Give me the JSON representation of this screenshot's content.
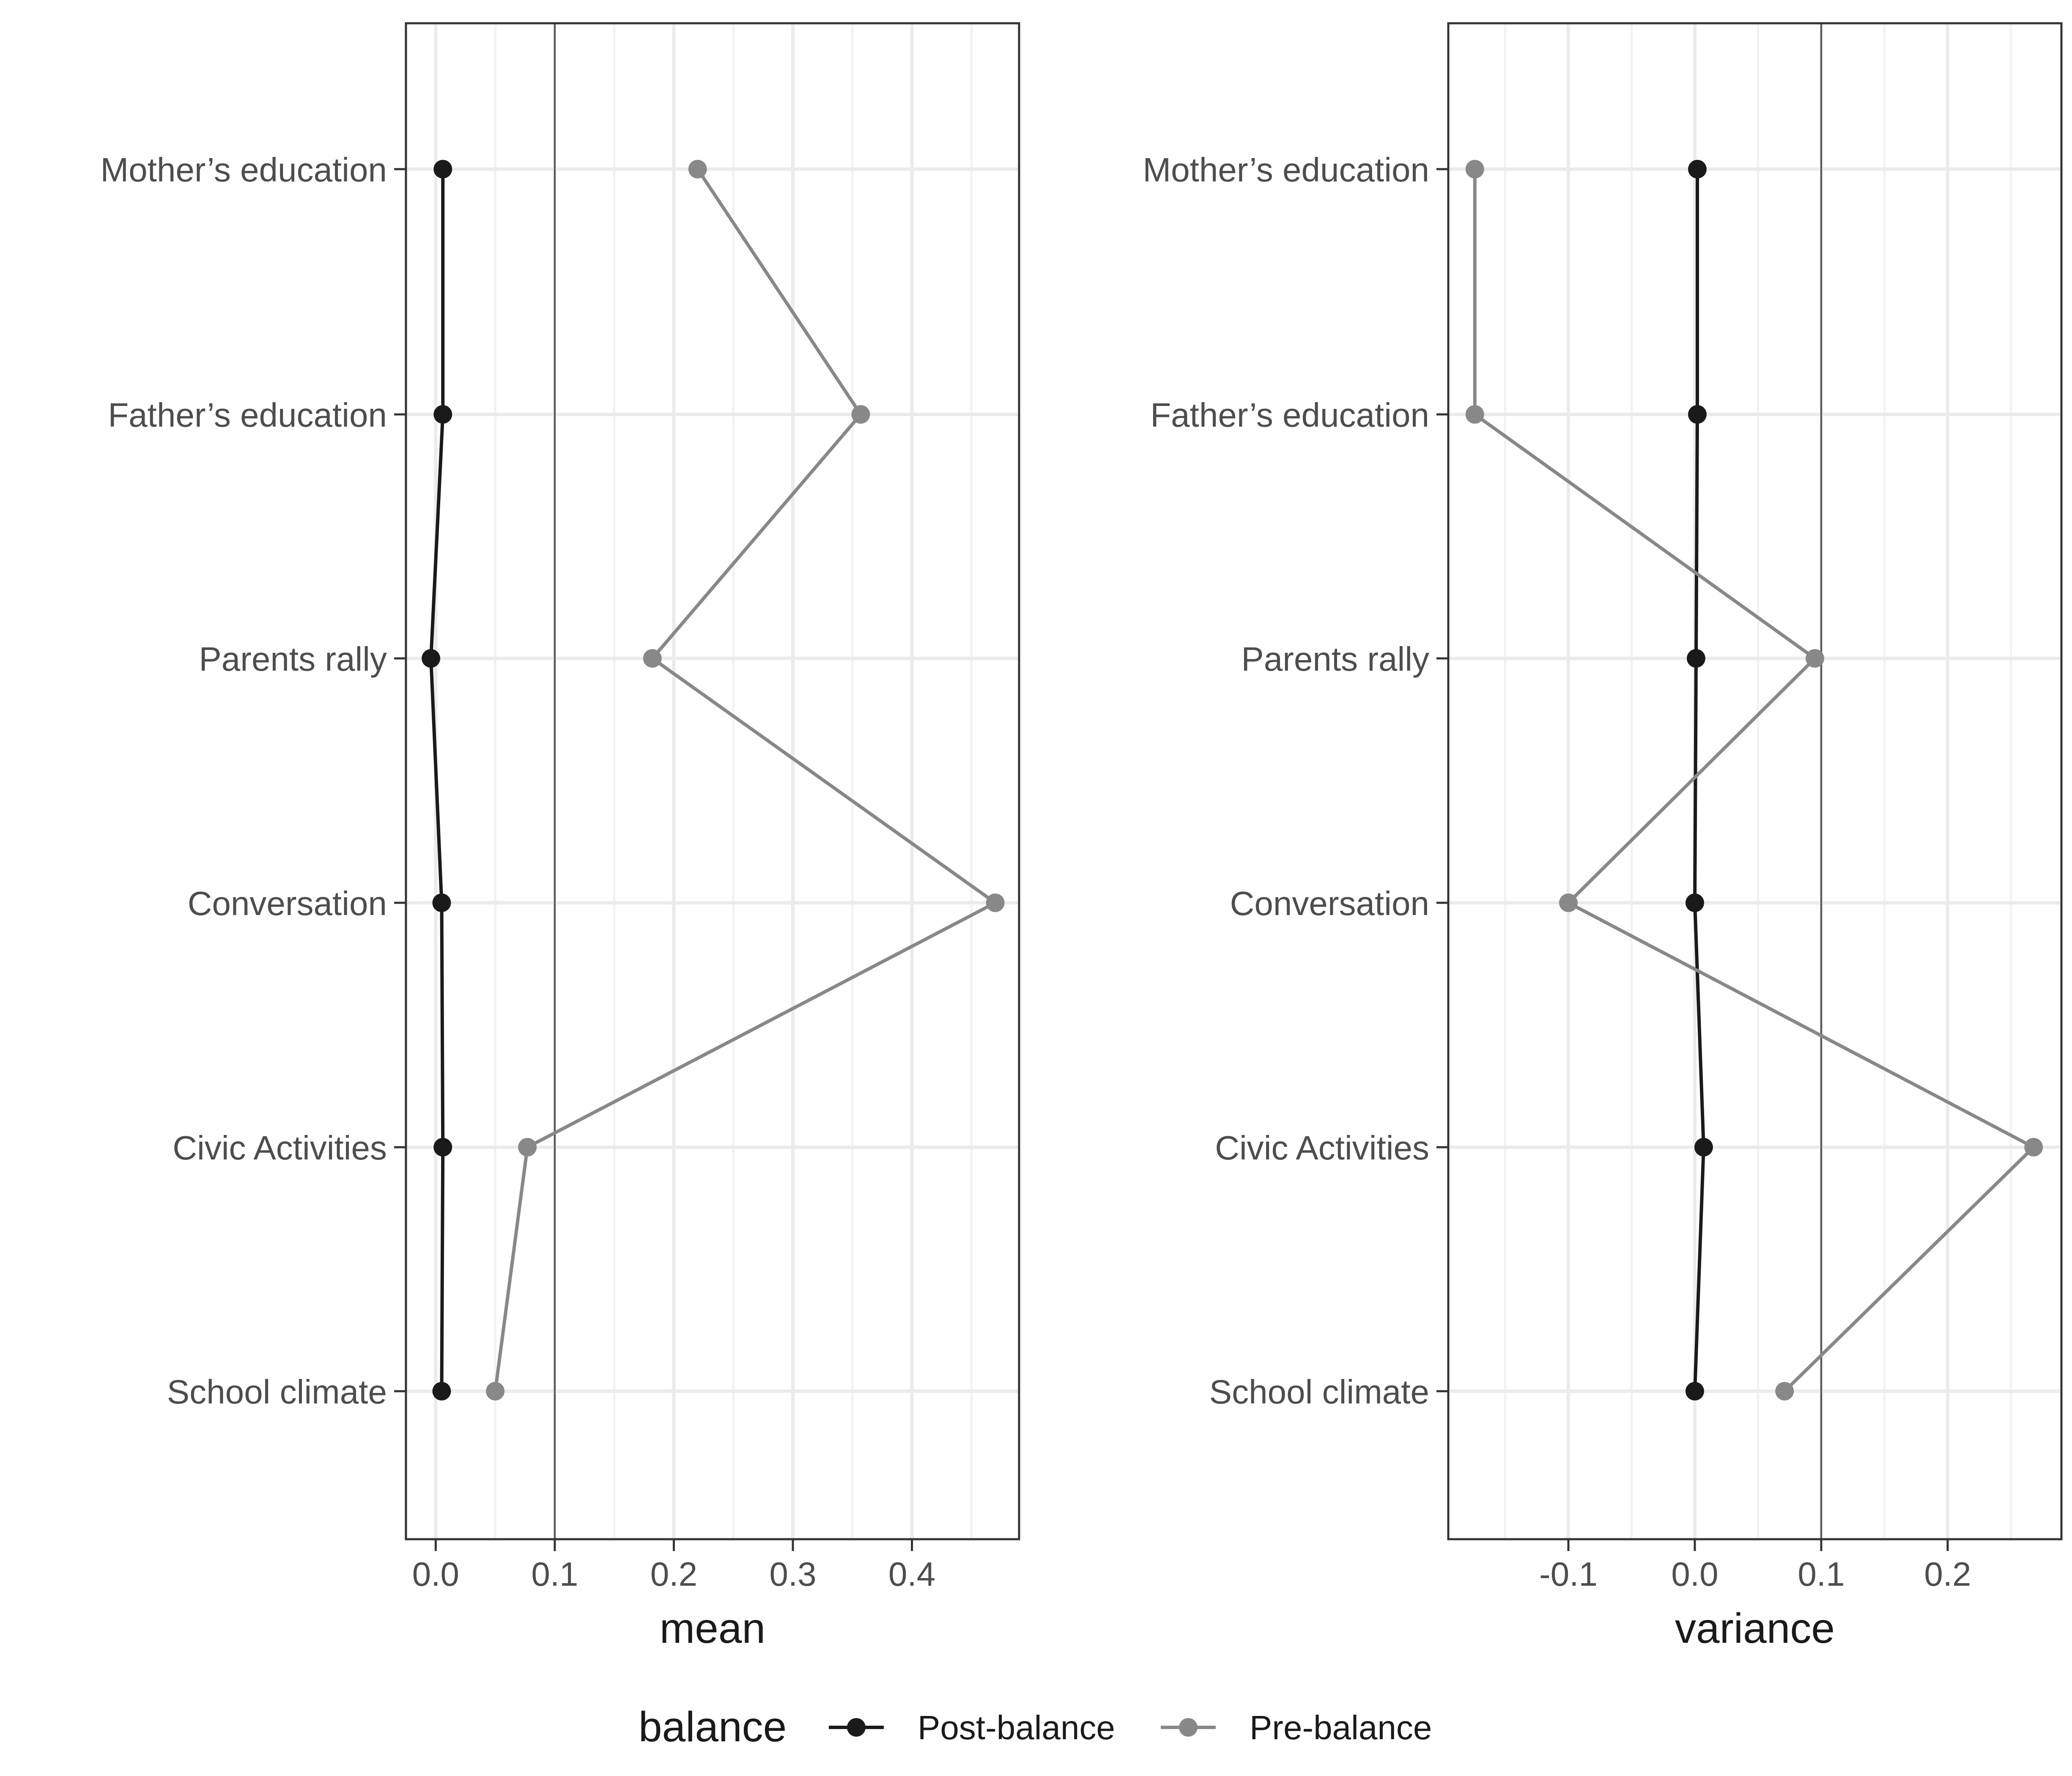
{
  "chart_data": [
    {
      "type": "line",
      "xlabel": "mean",
      "categories": [
        "Mother’s education",
        "Father’s education",
        "Parents rally",
        "Conversation",
        "Civic Activities",
        "School climate"
      ],
      "xlim": [
        -0.025,
        0.49
      ],
      "xticks": [
        0.0,
        0.1,
        0.2,
        0.3,
        0.4
      ],
      "xtick_labels": [
        "0.0",
        "0.1",
        "0.2",
        "0.3",
        "0.4"
      ],
      "reference_line": 0.1,
      "series": [
        {
          "name": "Post-balance",
          "values": [
            0.006,
            0.006,
            -0.004,
            0.005,
            0.006,
            0.005
          ]
        },
        {
          "name": "Pre-balance",
          "values": [
            0.22,
            0.357,
            0.182,
            0.47,
            0.077,
            0.05
          ]
        }
      ],
      "grid": true
    },
    {
      "type": "line",
      "xlabel": "variance",
      "categories": [
        "Mother’s education",
        "Father’s education",
        "Parents rally",
        "Conversation",
        "Civic Activities",
        "School climate"
      ],
      "xlim": [
        -0.195,
        0.29
      ],
      "xticks": [
        -0.1,
        0.0,
        0.1,
        0.2
      ],
      "xtick_labels": [
        "-0.1",
        "0.0",
        "0.1",
        "0.2"
      ],
      "reference_line": 0.1,
      "series": [
        {
          "name": "Post-balance",
          "values": [
            0.002,
            0.002,
            0.001,
            0.0,
            0.007,
            0.0
          ]
        },
        {
          "name": "Pre-balance",
          "values": [
            -0.174,
            -0.174,
            0.095,
            -0.1,
            0.268,
            0.071
          ]
        }
      ],
      "grid": true
    }
  ],
  "legend": {
    "title": "balance",
    "placement": "bottom",
    "items": [
      {
        "label": "Post-balance",
        "color": "#1a1a1a"
      },
      {
        "label": "Pre-balance",
        "color": "#888888"
      }
    ]
  },
  "colors": {
    "post": "#1a1a1a",
    "pre": "#888888",
    "grid_major": "#ebebeb",
    "grid_minor": "#f2f2f2",
    "panel_border": "#333333",
    "reference_line": "#555555"
  }
}
